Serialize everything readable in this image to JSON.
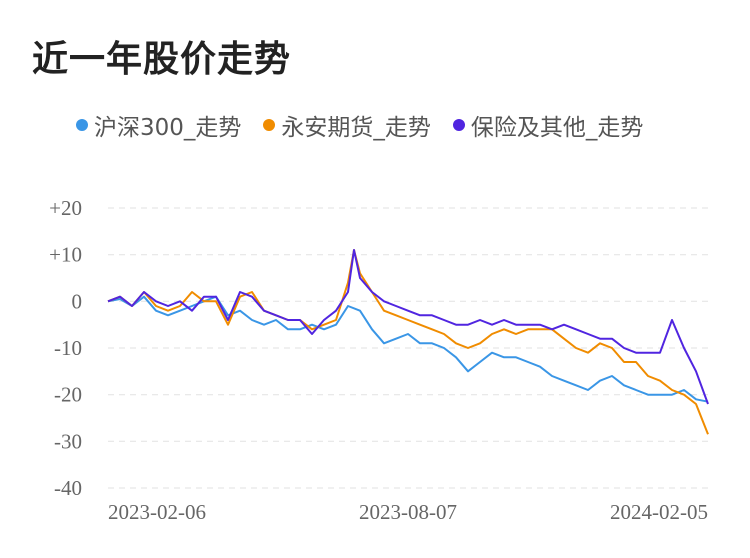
{
  "title": "近一年股价走势",
  "colors": {
    "s1": "#3a96e6",
    "s2": "#f08c00",
    "s3": "#5025e0",
    "grid": "#e6e6e6"
  },
  "chart_data": {
    "type": "line",
    "ylim": [
      -40,
      20
    ],
    "y_ticks": [
      "+20",
      "+10",
      "0",
      "-10",
      "-20",
      "-30",
      "-40"
    ],
    "y_tick_values": [
      20,
      10,
      0,
      -10,
      -20,
      -30,
      -40
    ],
    "x_tick_labels": [
      "2023-02-06",
      "2023-08-07",
      "2024-02-05"
    ],
    "x_tick_positions": [
      0,
      0.5,
      1
    ],
    "grid": true,
    "legend": "top",
    "series": [
      {
        "name": "沪深300_走势",
        "color": "#3a96e6",
        "t": [
          0,
          0.02,
          0.04,
          0.06,
          0.08,
          0.1,
          0.12,
          0.14,
          0.16,
          0.18,
          0.2,
          0.22,
          0.24,
          0.26,
          0.28,
          0.3,
          0.32,
          0.34,
          0.36,
          0.38,
          0.4,
          0.42,
          0.44,
          0.46,
          0.48,
          0.5,
          0.52,
          0.54,
          0.56,
          0.58,
          0.6,
          0.62,
          0.64,
          0.66,
          0.68,
          0.7,
          0.72,
          0.74,
          0.76,
          0.78,
          0.8,
          0.82,
          0.84,
          0.86,
          0.88,
          0.9,
          0.92,
          0.94,
          0.96,
          0.98,
          1.0
        ],
        "values": [
          0,
          0.5,
          -1,
          1,
          -2,
          -3,
          -2,
          -1,
          0,
          1,
          -3,
          -2,
          -4,
          -5,
          -4,
          -6,
          -6,
          -5,
          -6,
          -5,
          -1,
          -2,
          -6,
          -9,
          -8,
          -7,
          -9,
          -9,
          -10,
          -12,
          -15,
          -13,
          -11,
          -12,
          -12,
          -13,
          -14,
          -16,
          -17,
          -18,
          -19,
          -17,
          -16,
          -18,
          -19,
          -20,
          -20,
          -20,
          -19,
          -21,
          -21.5
        ]
      },
      {
        "name": "永安期货_走势",
        "color": "#f08c00",
        "t": [
          0,
          0.02,
          0.04,
          0.06,
          0.08,
          0.1,
          0.12,
          0.14,
          0.16,
          0.18,
          0.2,
          0.22,
          0.24,
          0.26,
          0.28,
          0.3,
          0.32,
          0.34,
          0.36,
          0.38,
          0.4,
          0.41,
          0.42,
          0.44,
          0.46,
          0.48,
          0.5,
          0.52,
          0.54,
          0.56,
          0.58,
          0.6,
          0.62,
          0.64,
          0.66,
          0.68,
          0.7,
          0.72,
          0.74,
          0.76,
          0.78,
          0.8,
          0.82,
          0.84,
          0.86,
          0.88,
          0.9,
          0.92,
          0.94,
          0.96,
          0.98,
          1.0
        ],
        "values": [
          0,
          1,
          -1,
          2,
          -1,
          -2,
          -1,
          2,
          0,
          0,
          -5,
          1,
          2,
          -2,
          -3,
          -4,
          -4,
          -6,
          -5,
          -4,
          4,
          11,
          6,
          2,
          -2,
          -3,
          -4,
          -5,
          -6,
          -7,
          -9,
          -10,
          -9,
          -7,
          -6,
          -7,
          -6,
          -6,
          -6,
          -8,
          -10,
          -11,
          -9,
          -10,
          -13,
          -13,
          -16,
          -17,
          -19,
          -20,
          -22,
          -28.5
        ]
      },
      {
        "name": "保险及其他_走势",
        "color": "#5025e0",
        "t": [
          0,
          0.02,
          0.04,
          0.06,
          0.08,
          0.1,
          0.12,
          0.14,
          0.16,
          0.18,
          0.2,
          0.22,
          0.24,
          0.26,
          0.28,
          0.3,
          0.32,
          0.34,
          0.36,
          0.38,
          0.4,
          0.41,
          0.42,
          0.44,
          0.46,
          0.48,
          0.5,
          0.52,
          0.54,
          0.56,
          0.58,
          0.6,
          0.62,
          0.64,
          0.66,
          0.68,
          0.7,
          0.72,
          0.74,
          0.76,
          0.78,
          0.8,
          0.82,
          0.84,
          0.86,
          0.88,
          0.9,
          0.92,
          0.94,
          0.96,
          0.98,
          1.0
        ],
        "values": [
          0,
          1,
          -1,
          2,
          0,
          -1,
          0,
          -2,
          1,
          1,
          -4,
          2,
          1,
          -2,
          -3,
          -4,
          -4,
          -7,
          -4,
          -2,
          2,
          11,
          5,
          2,
          0,
          -1,
          -2,
          -3,
          -3,
          -4,
          -5,
          -5,
          -4,
          -5,
          -4,
          -5,
          -5,
          -5,
          -6,
          -5,
          -6,
          -7,
          -8,
          -8,
          -10,
          -11,
          -11,
          -11,
          -4,
          -10,
          -15,
          -22
        ]
      }
    ]
  }
}
